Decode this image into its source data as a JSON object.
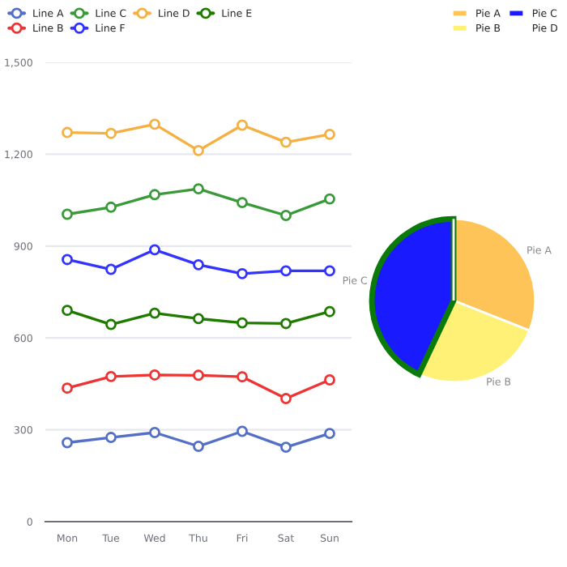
{
  "chart_data": [
    {
      "type": "line",
      "categories": [
        "Mon",
        "Tue",
        "Wed",
        "Thu",
        "Fri",
        "Sat",
        "Sun"
      ],
      "ylim": [
        0,
        1500
      ],
      "yticks": [
        0,
        300,
        600,
        900,
        {
          "value": 1200,
          "label": "1,200"
        },
        {
          "value": 1500,
          "label": "1,500"
        }
      ],
      "grid": "y",
      "legend": "top",
      "marker": "circle",
      "series": [
        {
          "name": "Line A",
          "color": "#5470c6",
          "values": [
            258,
            275,
            291,
            246,
            295,
            243,
            288
          ]
        },
        {
          "name": "Line B",
          "color": "#ee3333",
          "values": [
            436,
            474,
            479,
            478,
            473,
            402,
            463
          ]
        },
        {
          "name": "Line C",
          "color": "#3a9a3a",
          "values": [
            1004,
            1027,
            1068,
            1087,
            1042,
            1000,
            1054
          ]
        },
        {
          "name": "Line F",
          "color": "#3333ff",
          "values": [
            856,
            824,
            888,
            839,
            810,
            819,
            819
          ]
        },
        {
          "name": "Line D",
          "color": "#f5b041",
          "values": [
            1271,
            1268,
            1298,
            1212,
            1295,
            1239,
            1265
          ]
        },
        {
          "name": "Line E",
          "color": "#1f7a00",
          "values": [
            690,
            644,
            681,
            663,
            649,
            647,
            686
          ]
        }
      ]
    },
    {
      "type": "pie",
      "categories": [
        "Pie A",
        "Pie B",
        "Pie C",
        "Pie D"
      ],
      "values": [
        31,
        26,
        43,
        0
      ],
      "colors": [
        "#ffc457",
        "#fff176",
        "#1a1aff",
        "#ffffff"
      ],
      "legend": "top"
    }
  ]
}
